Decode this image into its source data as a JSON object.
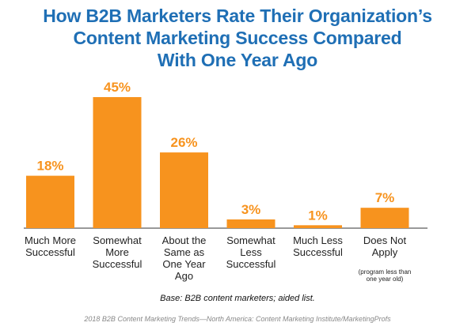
{
  "colors": {
    "title": "#1f6fb5",
    "bar": "#f7931e",
    "value_label": "#f7931e",
    "axis": "#333333"
  },
  "chart_data": {
    "type": "bar",
    "title_lines": [
      "How B2B Marketers Rate Their Organization’s",
      "Content Marketing Success Compared",
      "With One Year Ago"
    ],
    "categories": [
      [
        "Much More",
        "Successful"
      ],
      [
        "Somewhat",
        "More",
        "Successful"
      ],
      [
        "About the",
        "Same as",
        "One Year",
        "Ago"
      ],
      [
        "Somewhat",
        "Less",
        "Successful"
      ],
      [
        "Much Less",
        "Successful"
      ],
      [
        "Does Not",
        "Apply"
      ]
    ],
    "category_notes": [
      "",
      "",
      "",
      "",
      "",
      "(program less than one year old)"
    ],
    "values": [
      18,
      45,
      26,
      3,
      1,
      7
    ],
    "value_labels": [
      "18%",
      "45%",
      "26%",
      "3%",
      "1%",
      "7%"
    ],
    "ylim": [
      0,
      45
    ],
    "grid": false,
    "legend": false
  },
  "base_note": "Base: B2B content marketers; aided list.",
  "source": "2018 B2B Content Marketing Trends—North America: Content Marketing Institute/MarketingProfs"
}
